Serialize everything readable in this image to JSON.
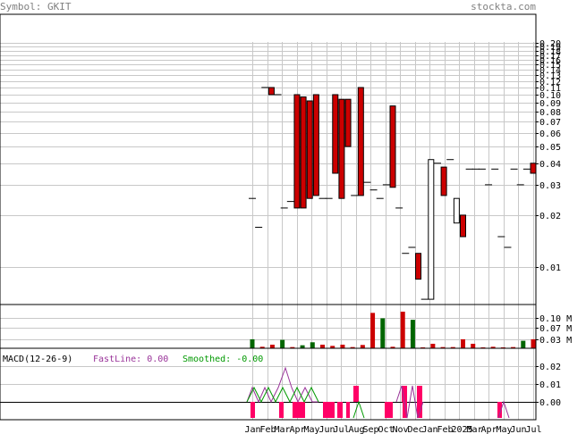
{
  "header": {
    "symbol_label": "Symbol: GKIT",
    "site": "stockta.com"
  },
  "colors": {
    "header_text": "#808080",
    "grid": "#c8c8c8",
    "frame": "#000000",
    "down_candle": "#cc0000",
    "up_candle": "#ffffff",
    "volume_up": "#006600",
    "volume_down": "#cc0000",
    "fastline": "#993399",
    "smoothed": "#009900",
    "histogram": "#ff0066"
  },
  "chart_data": [
    {
      "type": "candlestick",
      "title": "Symbol: GKIT",
      "y_scale": "log",
      "ylim": [
        0.0065,
        0.21
      ],
      "y_ticks": [
        "0.01",
        "0.02",
        "0.03",
        "0.04",
        "0.05",
        "0.06",
        "0.07",
        "0.08",
        "0.09",
        "0.10",
        "0.11",
        "0.12",
        "0.13",
        "0.14",
        "0.15",
        "0.16",
        "0.17",
        "0.18",
        "0.19",
        "0.20"
      ],
      "x_tick_labels": [
        "Jan",
        "Feb",
        "Mar",
        "Apr",
        "May",
        "Jun",
        "Jul",
        "Aug",
        "Sep",
        "Oct",
        "Nov",
        "Dec",
        "Jan",
        "Feb",
        "2025",
        "Mar",
        "Apr",
        "May",
        "Jun",
        "Jul"
      ],
      "grid": true,
      "candles": [
        {
          "open": 0.025,
          "close": 0.025,
          "high": 0.025,
          "low": 0.025,
          "dir": "flat"
        },
        {
          "open": 0.017,
          "close": 0.017,
          "high": 0.017,
          "low": 0.017,
          "dir": "flat"
        },
        {
          "open": 0.11,
          "close": 0.11,
          "high": 0.11,
          "low": 0.11,
          "dir": "flat"
        },
        {
          "open": 0.11,
          "close": 0.1,
          "high": 0.11,
          "low": 0.1,
          "dir": "down"
        },
        {
          "open": 0.1,
          "close": 0.1,
          "high": 0.1,
          "low": 0.1,
          "dir": "flat"
        },
        {
          "open": 0.022,
          "close": 0.022,
          "high": 0.022,
          "low": 0.022,
          "dir": "flat"
        },
        {
          "open": 0.024,
          "close": 0.024,
          "high": 0.024,
          "low": 0.024,
          "dir": "flat"
        },
        {
          "open": 0.1,
          "close": 0.022,
          "high": 0.1,
          "low": 0.022,
          "dir": "down"
        },
        {
          "open": 0.097,
          "close": 0.022,
          "high": 0.097,
          "low": 0.022,
          "dir": "down"
        },
        {
          "open": 0.092,
          "close": 0.025,
          "high": 0.092,
          "low": 0.025,
          "dir": "down"
        },
        {
          "open": 0.1,
          "close": 0.026,
          "high": 0.1,
          "low": 0.026,
          "dir": "down"
        },
        {
          "open": 0.025,
          "close": 0.025,
          "high": 0.025,
          "low": 0.025,
          "dir": "flat"
        },
        {
          "open": 0.025,
          "close": 0.025,
          "high": 0.025,
          "low": 0.025,
          "dir": "flat"
        },
        {
          "open": 0.1,
          "close": 0.035,
          "high": 0.1,
          "low": 0.035,
          "dir": "down"
        },
        {
          "open": 0.094,
          "close": 0.025,
          "high": 0.094,
          "low": 0.025,
          "dir": "down"
        },
        {
          "open": 0.094,
          "close": 0.05,
          "high": 0.094,
          "low": 0.05,
          "dir": "down"
        },
        {
          "open": 0.026,
          "close": 0.026,
          "high": 0.026,
          "low": 0.026,
          "dir": "flat"
        },
        {
          "open": 0.11,
          "close": 0.026,
          "high": 0.11,
          "low": 0.026,
          "dir": "down"
        },
        {
          "open": 0.031,
          "close": 0.031,
          "high": 0.031,
          "low": 0.031,
          "dir": "flat"
        },
        {
          "open": 0.028,
          "close": 0.028,
          "high": 0.028,
          "low": 0.028,
          "dir": "flat"
        },
        {
          "open": 0.025,
          "close": 0.025,
          "high": 0.025,
          "low": 0.025,
          "dir": "flat"
        },
        {
          "open": 0.03,
          "close": 0.03,
          "high": 0.03,
          "low": 0.03,
          "dir": "flat"
        },
        {
          "open": 0.086,
          "close": 0.029,
          "high": 0.086,
          "low": 0.029,
          "dir": "down"
        },
        {
          "open": 0.022,
          "close": 0.022,
          "high": 0.022,
          "low": 0.022,
          "dir": "flat"
        },
        {
          "open": 0.012,
          "close": 0.012,
          "high": 0.012,
          "low": 0.012,
          "dir": "flat"
        },
        {
          "open": 0.013,
          "close": 0.013,
          "high": 0.013,
          "low": 0.013,
          "dir": "flat"
        },
        {
          "open": 0.012,
          "close": 0.0085,
          "high": 0.012,
          "low": 0.0085,
          "dir": "down"
        },
        {
          "open": 0.0065,
          "close": 0.0065,
          "high": 0.0065,
          "low": 0.0065,
          "dir": "flat"
        },
        {
          "open": 0.0065,
          "close": 0.042,
          "high": 0.042,
          "low": 0.0065,
          "dir": "up"
        },
        {
          "open": 0.04,
          "close": 0.04,
          "high": 0.04,
          "low": 0.04,
          "dir": "flat"
        },
        {
          "open": 0.038,
          "close": 0.026,
          "high": 0.038,
          "low": 0.026,
          "dir": "down"
        },
        {
          "open": 0.042,
          "close": 0.042,
          "high": 0.042,
          "low": 0.042,
          "dir": "flat"
        },
        {
          "open": 0.018,
          "close": 0.025,
          "high": 0.025,
          "low": 0.018,
          "dir": "up"
        },
        {
          "open": 0.02,
          "close": 0.015,
          "high": 0.02,
          "low": 0.015,
          "dir": "down"
        },
        {
          "open": 0.037,
          "close": 0.037,
          "high": 0.037,
          "low": 0.037,
          "dir": "flat"
        },
        {
          "open": 0.037,
          "close": 0.037,
          "high": 0.037,
          "low": 0.037,
          "dir": "flat"
        },
        {
          "open": 0.037,
          "close": 0.037,
          "high": 0.037,
          "low": 0.037,
          "dir": "flat"
        },
        {
          "open": 0.03,
          "close": 0.03,
          "high": 0.03,
          "low": 0.03,
          "dir": "flat"
        },
        {
          "open": 0.037,
          "close": 0.037,
          "high": 0.037,
          "low": 0.037,
          "dir": "flat"
        },
        {
          "open": 0.015,
          "close": 0.015,
          "high": 0.015,
          "low": 0.015,
          "dir": "flat"
        },
        {
          "open": 0.013,
          "close": 0.013,
          "high": 0.013,
          "low": 0.013,
          "dir": "flat"
        },
        {
          "open": 0.037,
          "close": 0.037,
          "high": 0.037,
          "low": 0.037,
          "dir": "flat"
        },
        {
          "open": 0.03,
          "close": 0.03,
          "high": 0.03,
          "low": 0.03,
          "dir": "flat"
        },
        {
          "open": 0.037,
          "close": 0.037,
          "high": 0.037,
          "low": 0.037,
          "dir": "flat"
        },
        {
          "open": 0.04,
          "close": 0.035,
          "high": 0.04,
          "low": 0.035,
          "dir": "down"
        }
      ]
    },
    {
      "type": "bar",
      "title": "Volume",
      "y_ticks": [
        "0.10 M",
        "0.07 M",
        "0.03 M"
      ],
      "ylim": [
        0,
        0.14
      ],
      "bars": [
        {
          "value": 0.03,
          "dir": "up"
        },
        {
          "value": 0.005,
          "dir": "down"
        },
        {
          "value": 0.012,
          "dir": "down"
        },
        {
          "value": 0.028,
          "dir": "up"
        },
        {
          "value": 0.004,
          "dir": "down"
        },
        {
          "value": 0.01,
          "dir": "up"
        },
        {
          "value": 0.02,
          "dir": "up"
        },
        {
          "value": 0.012,
          "dir": "down"
        },
        {
          "value": 0.008,
          "dir": "down"
        },
        {
          "value": 0.012,
          "dir": "down"
        },
        {
          "value": 0.004,
          "dir": "down"
        },
        {
          "value": 0.011,
          "dir": "down"
        },
        {
          "value": 0.118,
          "dir": "down"
        },
        {
          "value": 0.1,
          "dir": "up"
        },
        {
          "value": 0.005,
          "dir": "down"
        },
        {
          "value": 0.122,
          "dir": "down"
        },
        {
          "value": 0.095,
          "dir": "up"
        },
        {
          "value": 0.003,
          "dir": "down"
        },
        {
          "value": 0.015,
          "dir": "down"
        },
        {
          "value": 0.004,
          "dir": "down"
        },
        {
          "value": 0.004,
          "dir": "down"
        },
        {
          "value": 0.03,
          "dir": "down"
        },
        {
          "value": 0.015,
          "dir": "down"
        },
        {
          "value": 0.003,
          "dir": "down"
        },
        {
          "value": 0.005,
          "dir": "down"
        },
        {
          "value": 0.003,
          "dir": "down"
        },
        {
          "value": 0.004,
          "dir": "down"
        },
        {
          "value": 0.025,
          "dir": "up"
        },
        {
          "value": 0.03,
          "dir": "down"
        }
      ]
    },
    {
      "type": "line",
      "title": "MACD(12-26-9)",
      "ylim": [
        -0.01,
        0.03
      ],
      "y_ticks": [
        "0.02",
        "0.01",
        "0.00"
      ],
      "series": [
        {
          "name": "FastLine",
          "latest": "0.00"
        },
        {
          "name": "Smoothed",
          "latest": "-0.00"
        }
      ]
    }
  ],
  "macd_legend": {
    "title": "MACD(12-26-9)",
    "fast_label": "FastLine: 0.00",
    "smooth_label": "Smoothed: -0.00"
  }
}
